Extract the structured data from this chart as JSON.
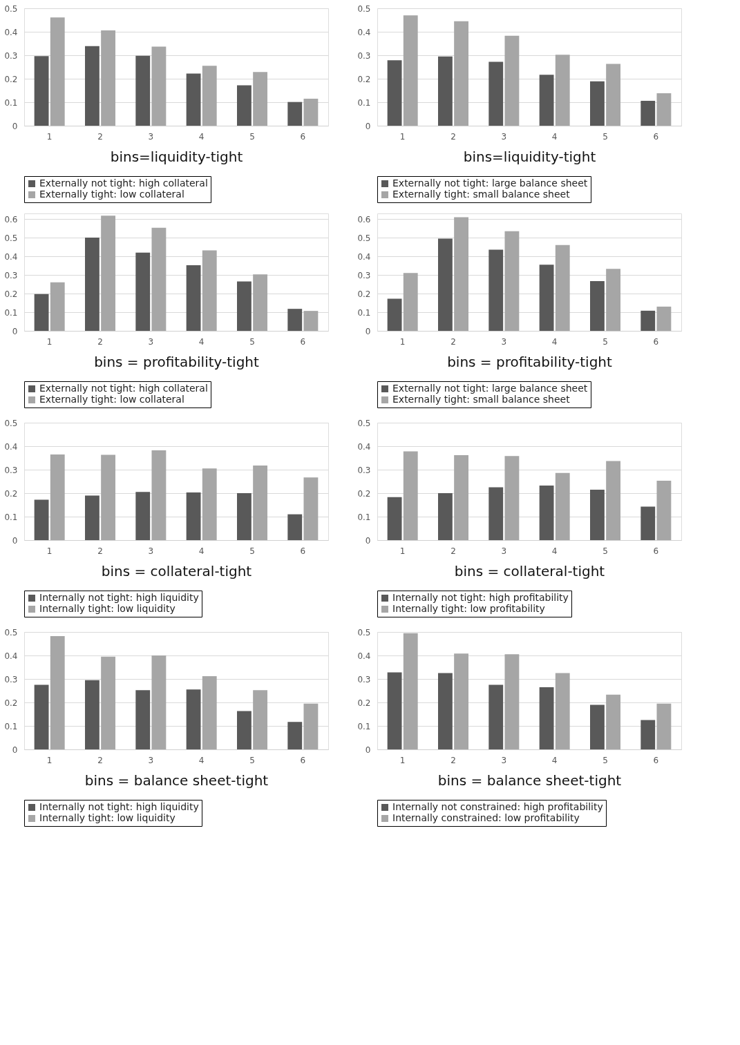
{
  "chart_data": [
    {
      "type": "bar",
      "xlabel": "bins=liquidity-tight",
      "categories": [
        "1",
        "2",
        "3",
        "4",
        "5",
        "6"
      ],
      "ylim": [
        0,
        0.5
      ],
      "yticks": [
        0,
        0.1,
        0.2,
        0.3,
        0.4,
        0.5
      ],
      "grid": "y",
      "legend": "bottom",
      "series": [
        {
          "name": "Externally not tight: high collateral",
          "color": "#595959",
          "values": [
            0.296,
            0.339,
            0.298,
            0.222,
            0.172,
            0.101
          ]
        },
        {
          "name": "Externally tight: low collateral",
          "color": "#a6a6a6",
          "values": [
            0.461,
            0.406,
            0.337,
            0.255,
            0.229,
            0.115
          ]
        }
      ]
    },
    {
      "type": "bar",
      "xlabel": "bins=liquidity-tight",
      "categories": [
        "1",
        "2",
        "3",
        "4",
        "5",
        "6"
      ],
      "ylim": [
        0,
        0.5
      ],
      "yticks": [
        0,
        0.1,
        0.2,
        0.3,
        0.4,
        0.5
      ],
      "grid": "y",
      "legend": "bottom",
      "series": [
        {
          "name": "Externally not tight: large balance sheet",
          "color": "#595959",
          "values": [
            0.279,
            0.295,
            0.272,
            0.217,
            0.189,
            0.106
          ]
        },
        {
          "name": "Externally tight: small balance sheet",
          "color": "#a6a6a6",
          "values": [
            0.47,
            0.445,
            0.383,
            0.302,
            0.263,
            0.138
          ]
        }
      ]
    },
    {
      "type": "bar",
      "xlabel": "bins = profitability-tight",
      "categories": [
        "1",
        "2",
        "3",
        "4",
        "5",
        "6"
      ],
      "ylim": [
        0,
        0.63
      ],
      "yticks": [
        0,
        0.1,
        0.2,
        0.3,
        0.4,
        0.5,
        0.6
      ],
      "grid": "y",
      "legend": "bottom",
      "series": [
        {
          "name": "Externally not tight: high collateral",
          "color": "#595959",
          "values": [
            0.197,
            0.5,
            0.42,
            0.352,
            0.265,
            0.118
          ]
        },
        {
          "name": "Externally tight: low collateral",
          "color": "#a6a6a6",
          "values": [
            0.26,
            0.618,
            0.553,
            0.432,
            0.303,
            0.107
          ]
        }
      ]
    },
    {
      "type": "bar",
      "xlabel": "bins = profitability-tight",
      "categories": [
        "1",
        "2",
        "3",
        "4",
        "5",
        "6"
      ],
      "ylim": [
        0,
        0.63
      ],
      "yticks": [
        0,
        0.1,
        0.2,
        0.3,
        0.4,
        0.5,
        0.6
      ],
      "grid": "y",
      "legend": "bottom",
      "series": [
        {
          "name": "Externally not tight: large balance sheet",
          "color": "#595959",
          "values": [
            0.172,
            0.495,
            0.435,
            0.355,
            0.267,
            0.108
          ]
        },
        {
          "name": "Externally tight: small balance sheet",
          "color": "#a6a6a6",
          "values": [
            0.31,
            0.61,
            0.535,
            0.46,
            0.333,
            0.13
          ]
        }
      ]
    },
    {
      "type": "bar",
      "xlabel": "bins = collateral-tight",
      "categories": [
        "1",
        "2",
        "3",
        "4",
        "5",
        "6"
      ],
      "ylim": [
        0,
        0.5
      ],
      "yticks": [
        0,
        0.1,
        0.2,
        0.3,
        0.4,
        0.5
      ],
      "grid": "y",
      "legend": "bottom",
      "series": [
        {
          "name": "Internally not tight: high liquidity",
          "color": "#595959",
          "values": [
            0.172,
            0.19,
            0.205,
            0.203,
            0.2,
            0.11
          ]
        },
        {
          "name": "Internally tight: low liquidity",
          "color": "#a6a6a6",
          "values": [
            0.365,
            0.363,
            0.382,
            0.305,
            0.318,
            0.267
          ]
        }
      ]
    },
    {
      "type": "bar",
      "xlabel": "bins = collateral-tight",
      "categories": [
        "1",
        "2",
        "3",
        "4",
        "5",
        "6"
      ],
      "ylim": [
        0,
        0.5
      ],
      "yticks": [
        0,
        0.1,
        0.2,
        0.3,
        0.4,
        0.5
      ],
      "grid": "y",
      "legend": "bottom",
      "series": [
        {
          "name": "Internally not tight: high profitability",
          "color": "#595959",
          "values": [
            0.183,
            0.2,
            0.225,
            0.232,
            0.215,
            0.143
          ]
        },
        {
          "name": "Internally tight: low profitability",
          "color": "#a6a6a6",
          "values": [
            0.378,
            0.362,
            0.358,
            0.286,
            0.337,
            0.253
          ]
        }
      ]
    },
    {
      "type": "bar",
      "xlabel": "bins = balance sheet-tight",
      "categories": [
        "1",
        "2",
        "3",
        "4",
        "5",
        "6"
      ],
      "ylim": [
        0,
        0.5
      ],
      "yticks": [
        0,
        0.1,
        0.2,
        0.3,
        0.4,
        0.5
      ],
      "grid": "y",
      "legend": "bottom",
      "series": [
        {
          "name": "Internally not tight: high liquidity",
          "color": "#595959",
          "values": [
            0.275,
            0.295,
            0.252,
            0.255,
            0.163,
            0.117
          ]
        },
        {
          "name": "Internally tight: low liquidity",
          "color": "#a6a6a6",
          "values": [
            0.482,
            0.395,
            0.4,
            0.312,
            0.252,
            0.195
          ]
        }
      ]
    },
    {
      "type": "bar",
      "xlabel": "bins = balance sheet-tight",
      "categories": [
        "1",
        "2",
        "3",
        "4",
        "5",
        "6"
      ],
      "ylim": [
        0,
        0.5
      ],
      "yticks": [
        0,
        0.1,
        0.2,
        0.3,
        0.4,
        0.5
      ],
      "grid": "y",
      "legend": "bottom",
      "series": [
        {
          "name": "Internally not constrained: high profitability",
          "color": "#595959",
          "values": [
            0.328,
            0.325,
            0.275,
            0.265,
            0.19,
            0.125
          ]
        },
        {
          "name": "Internally constrained: low profitability",
          "color": "#a6a6a6",
          "values": [
            0.495,
            0.408,
            0.405,
            0.325,
            0.233,
            0.195
          ]
        }
      ]
    }
  ]
}
